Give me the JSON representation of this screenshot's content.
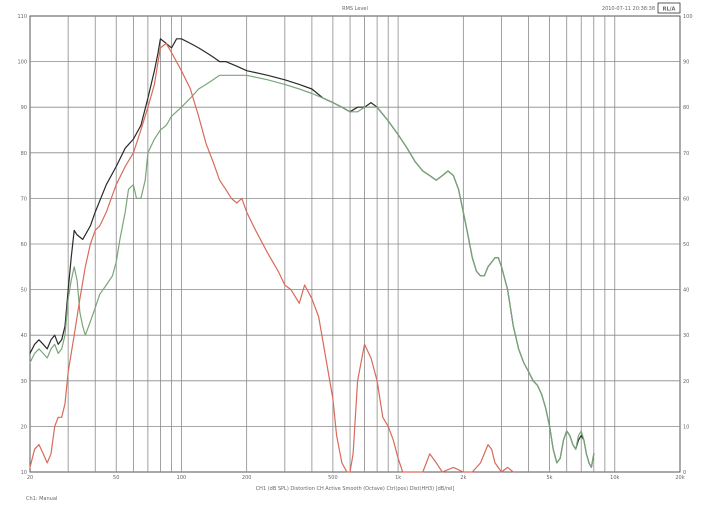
{
  "header": {
    "title": "RMS Level",
    "date": "2010-07-11 20:38:38",
    "badge": "RL/A"
  },
  "footer": {
    "caption": "CH1 (dB SPL)   Distortion  CH Active  Smooth (Octave)  Ctrl(pos)   Dist(HH3) [dB/rel]",
    "note": "Ch1: Manual"
  },
  "chart_data": {
    "type": "line",
    "x_scale": "log",
    "xlim": [
      20,
      20000
    ],
    "ylim": [
      10,
      110
    ],
    "y_right_lim": [
      0,
      100
    ],
    "grid": true,
    "legend": "none",
    "x_tick_labels": [
      "20",
      "50",
      "100",
      "200",
      "500",
      "1k",
      "2k",
      "5k",
      "10k",
      "20k"
    ],
    "x_tick_values": [
      20,
      50,
      100,
      200,
      500,
      1000,
      2000,
      5000,
      10000,
      20000
    ],
    "y_tick_labels": [
      "110",
      "100",
      "90",
      "80",
      "70",
      "60",
      "50",
      "40",
      "30",
      "20",
      "10"
    ],
    "y_tick_values": [
      110,
      100,
      90,
      80,
      70,
      60,
      50,
      40,
      30,
      20,
      10
    ],
    "y_right_tick_labels": [
      "100",
      "90",
      "80",
      "70",
      "60",
      "50",
      "40",
      "30",
      "20",
      "10",
      "0"
    ],
    "y_right_tick_values": [
      100,
      90,
      80,
      70,
      60,
      50,
      40,
      30,
      20,
      10,
      0
    ],
    "series": [
      {
        "color": "#2a2a2a",
        "points": [
          [
            20,
            36
          ],
          [
            21,
            38
          ],
          [
            22,
            39
          ],
          [
            23,
            38
          ],
          [
            24,
            37
          ],
          [
            25,
            39
          ],
          [
            26,
            40
          ],
          [
            27,
            38
          ],
          [
            28,
            39
          ],
          [
            29,
            42
          ],
          [
            30,
            50
          ],
          [
            31,
            57
          ],
          [
            32,
            63
          ],
          [
            33,
            62
          ],
          [
            35,
            61
          ],
          [
            38,
            64
          ],
          [
            40,
            67
          ],
          [
            45,
            73
          ],
          [
            50,
            77
          ],
          [
            55,
            81
          ],
          [
            60,
            83
          ],
          [
            65,
            86
          ],
          [
            70,
            92
          ],
          [
            75,
            98
          ],
          [
            78,
            102
          ],
          [
            80,
            105
          ],
          [
            85,
            104
          ],
          [
            90,
            103
          ],
          [
            95,
            105
          ],
          [
            100,
            105
          ],
          [
            110,
            104
          ],
          [
            120,
            103
          ],
          [
            130,
            102
          ],
          [
            140,
            101
          ],
          [
            150,
            100
          ],
          [
            160,
            100
          ],
          [
            180,
            99
          ],
          [
            200,
            98
          ],
          [
            250,
            97
          ],
          [
            300,
            96
          ],
          [
            350,
            95
          ],
          [
            400,
            94
          ],
          [
            450,
            92
          ],
          [
            500,
            91
          ],
          [
            550,
            90
          ],
          [
            600,
            89
          ],
          [
            650,
            90
          ],
          [
            700,
            90
          ],
          [
            750,
            91
          ],
          [
            800,
            90
          ],
          [
            900,
            87
          ],
          [
            1000,
            84
          ],
          [
            1100,
            81
          ],
          [
            1200,
            78
          ],
          [
            1300,
            76
          ],
          [
            1400,
            75
          ],
          [
            1500,
            74
          ],
          [
            1600,
            75
          ],
          [
            1700,
            76
          ],
          [
            1800,
            75
          ],
          [
            1900,
            72
          ],
          [
            2000,
            67
          ],
          [
            2100,
            62
          ],
          [
            2200,
            57
          ],
          [
            2300,
            54
          ],
          [
            2400,
            53
          ],
          [
            2500,
            53
          ],
          [
            2600,
            55
          ],
          [
            2700,
            56
          ],
          [
            2800,
            57
          ],
          [
            2900,
            57
          ],
          [
            3000,
            55
          ],
          [
            3200,
            50
          ],
          [
            3400,
            42
          ],
          [
            3600,
            37
          ],
          [
            3800,
            34
          ],
          [
            4000,
            32
          ],
          [
            4200,
            30
          ],
          [
            4400,
            29
          ],
          [
            4600,
            27
          ],
          [
            4800,
            24
          ],
          [
            5000,
            20
          ],
          [
            5200,
            15
          ],
          [
            5400,
            12
          ],
          [
            5600,
            13
          ],
          [
            5800,
            17
          ],
          [
            6000,
            19
          ],
          [
            6200,
            18
          ],
          [
            6400,
            16
          ],
          [
            6600,
            15
          ],
          [
            6800,
            17
          ],
          [
            7000,
            18
          ],
          [
            7200,
            17
          ],
          [
            7400,
            14
          ],
          [
            7600,
            12
          ],
          [
            7800,
            11
          ],
          [
            8000,
            14
          ]
        ]
      },
      {
        "color": "#7aa67a",
        "points": [
          [
            20,
            34
          ],
          [
            21,
            36
          ],
          [
            22,
            37
          ],
          [
            23,
            36
          ],
          [
            24,
            35
          ],
          [
            25,
            37
          ],
          [
            26,
            38
          ],
          [
            27,
            36
          ],
          [
            28,
            37
          ],
          [
            29,
            40
          ],
          [
            30,
            48
          ],
          [
            31,
            52
          ],
          [
            32,
            55
          ],
          [
            33,
            52
          ],
          [
            34,
            45
          ],
          [
            35,
            42
          ],
          [
            36,
            40
          ],
          [
            38,
            43
          ],
          [
            40,
            46
          ],
          [
            42,
            49
          ],
          [
            45,
            51
          ],
          [
            48,
            53
          ],
          [
            50,
            56
          ],
          [
            52,
            61
          ],
          [
            55,
            67
          ],
          [
            57,
            72
          ],
          [
            60,
            73
          ],
          [
            62,
            70
          ],
          [
            65,
            70
          ],
          [
            68,
            74
          ],
          [
            70,
            80
          ],
          [
            75,
            83
          ],
          [
            80,
            85
          ],
          [
            85,
            86
          ],
          [
            90,
            88
          ],
          [
            100,
            90
          ],
          [
            110,
            92
          ],
          [
            120,
            94
          ],
          [
            130,
            95
          ],
          [
            140,
            96
          ],
          [
            150,
            97
          ],
          [
            170,
            97
          ],
          [
            200,
            97
          ],
          [
            250,
            96
          ],
          [
            300,
            95
          ],
          [
            350,
            94
          ],
          [
            400,
            93
          ],
          [
            450,
            92
          ],
          [
            500,
            91
          ],
          [
            550,
            90
          ],
          [
            600,
            89
          ],
          [
            650,
            89
          ],
          [
            700,
            90
          ],
          [
            750,
            90
          ],
          [
            800,
            90
          ],
          [
            900,
            87
          ],
          [
            1000,
            84
          ],
          [
            1100,
            81
          ],
          [
            1200,
            78
          ],
          [
            1300,
            76
          ],
          [
            1400,
            75
          ],
          [
            1500,
            74
          ],
          [
            1600,
            75
          ],
          [
            1700,
            76
          ],
          [
            1800,
            75
          ],
          [
            1900,
            72
          ],
          [
            2000,
            67
          ],
          [
            2100,
            62
          ],
          [
            2200,
            57
          ],
          [
            2300,
            54
          ],
          [
            2400,
            53
          ],
          [
            2500,
            53
          ],
          [
            2600,
            55
          ],
          [
            2700,
            56
          ],
          [
            2800,
            57
          ],
          [
            2900,
            57
          ],
          [
            3000,
            55
          ],
          [
            3200,
            50
          ],
          [
            3400,
            42
          ],
          [
            3600,
            37
          ],
          [
            3800,
            34
          ],
          [
            4000,
            32
          ],
          [
            4200,
            30
          ],
          [
            4400,
            29
          ],
          [
            4600,
            27
          ],
          [
            4800,
            24
          ],
          [
            5000,
            20
          ],
          [
            5200,
            15
          ],
          [
            5400,
            12
          ],
          [
            5600,
            13
          ],
          [
            5800,
            17
          ],
          [
            6000,
            19
          ],
          [
            6200,
            18
          ],
          [
            6400,
            16
          ],
          [
            6600,
            15
          ],
          [
            6800,
            18
          ],
          [
            7000,
            19
          ],
          [
            7200,
            17
          ],
          [
            7400,
            14
          ],
          [
            7600,
            12
          ],
          [
            7800,
            11
          ],
          [
            8000,
            14
          ]
        ]
      },
      {
        "color": "#d96a5a",
        "points": [
          [
            20,
            11
          ],
          [
            21,
            15
          ],
          [
            22,
            16
          ],
          [
            23,
            14
          ],
          [
            24,
            12
          ],
          [
            25,
            14
          ],
          [
            26,
            20
          ],
          [
            27,
            22
          ],
          [
            28,
            22
          ],
          [
            29,
            25
          ],
          [
            30,
            32
          ],
          [
            32,
            40
          ],
          [
            34,
            48
          ],
          [
            36,
            55
          ],
          [
            38,
            60
          ],
          [
            40,
            63
          ],
          [
            42,
            64
          ],
          [
            45,
            67
          ],
          [
            50,
            73
          ],
          [
            55,
            77
          ],
          [
            60,
            80
          ],
          [
            65,
            85
          ],
          [
            70,
            90
          ],
          [
            75,
            95
          ],
          [
            78,
            100
          ],
          [
            80,
            103
          ],
          [
            85,
            104
          ],
          [
            90,
            102
          ],
          [
            100,
            98
          ],
          [
            110,
            94
          ],
          [
            120,
            88
          ],
          [
            130,
            82
          ],
          [
            140,
            78
          ],
          [
            150,
            74
          ],
          [
            160,
            72
          ],
          [
            170,
            70
          ],
          [
            180,
            69
          ],
          [
            190,
            70
          ],
          [
            200,
            67
          ],
          [
            220,
            63
          ],
          [
            250,
            58
          ],
          [
            280,
            54
          ],
          [
            300,
            51
          ],
          [
            320,
            50
          ],
          [
            350,
            47
          ],
          [
            370,
            51
          ],
          [
            400,
            48
          ],
          [
            430,
            44
          ],
          [
            460,
            36
          ],
          [
            500,
            26
          ],
          [
            520,
            18
          ],
          [
            550,
            12
          ],
          [
            580,
            10
          ],
          [
            600,
            10
          ],
          [
            620,
            14
          ],
          [
            650,
            30
          ],
          [
            700,
            38
          ],
          [
            750,
            35
          ],
          [
            800,
            30
          ],
          [
            850,
            22
          ],
          [
            900,
            20
          ],
          [
            950,
            17
          ],
          [
            1000,
            13
          ],
          [
            1050,
            10
          ],
          [
            1100,
            10
          ],
          [
            1200,
            10
          ],
          [
            1300,
            10
          ],
          [
            1400,
            14
          ],
          [
            1500,
            12
          ],
          [
            1600,
            10
          ],
          [
            1800,
            11
          ],
          [
            2000,
            10
          ],
          [
            2200,
            10
          ],
          [
            2400,
            12
          ],
          [
            2600,
            16
          ],
          [
            2700,
            15
          ],
          [
            2800,
            12
          ],
          [
            3000,
            10
          ],
          [
            3200,
            11
          ],
          [
            3400,
            10
          ]
        ]
      }
    ]
  }
}
